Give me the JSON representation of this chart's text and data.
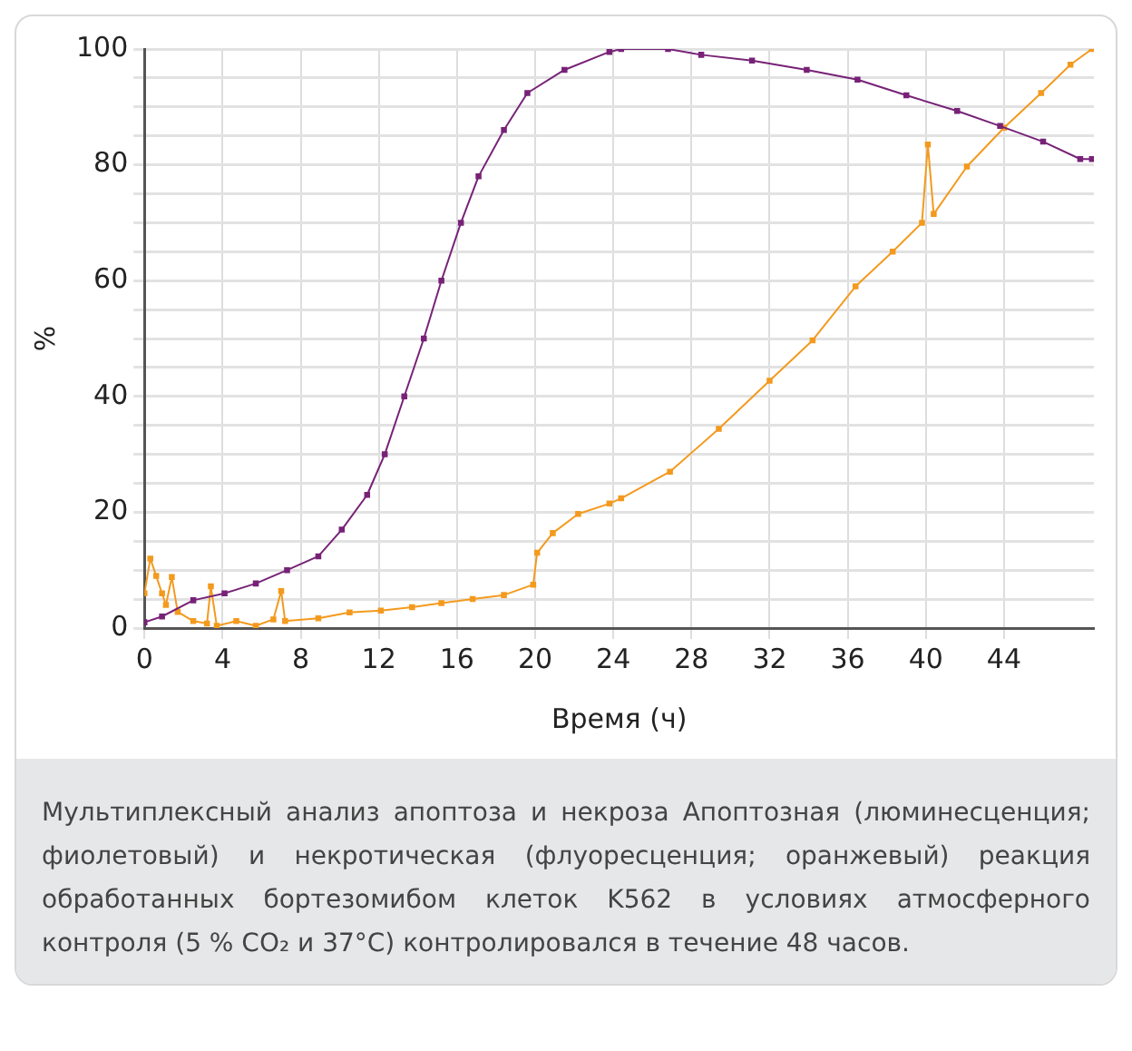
{
  "chart_data": {
    "type": "line",
    "xlabel": "Время (ч)",
    "ylabel": "%",
    "series": [
      {
        "color": "#772277",
        "x": [
          0,
          0.9,
          2.5,
          4.1,
          5.7,
          7.3,
          8.9,
          10.1,
          11.4,
          12.3,
          13.3,
          14.3,
          15.2,
          16.2,
          17.1,
          18.4,
          19.6,
          21.5,
          23.8,
          24.4,
          26.8,
          28.5,
          31.1,
          33.9,
          36.5,
          39,
          41.6,
          43.8,
          46,
          47.9,
          48.5
        ],
        "values": [
          1,
          2,
          4.8,
          6,
          7.7,
          10,
          12.4,
          17,
          23,
          30,
          40,
          50,
          60,
          70,
          78,
          86,
          92.4,
          96.4,
          99.5,
          100,
          100,
          99,
          98,
          96.4,
          94.7,
          92,
          89.3,
          86.7,
          84,
          81,
          81
        ]
      },
      {
        "color": "#f39a1e",
        "x": [
          0,
          0.3,
          0.6,
          0.9,
          1.1,
          1.4,
          1.7,
          2.5,
          3.2,
          3.4,
          3.7,
          4.7,
          5.7,
          6.6,
          7,
          7.2,
          8.9,
          10.5,
          12.1,
          13.7,
          15.2,
          16.8,
          18.4,
          19.9,
          20.1,
          20.9,
          22.2,
          23.8,
          24.4,
          26.9,
          29.4,
          32,
          34.2,
          36.4,
          38.3,
          39.8,
          40.1,
          40.4,
          42.1,
          44,
          45.9,
          47.4,
          48.5
        ],
        "values": [
          6,
          12,
          9,
          6,
          4,
          8.8,
          2.8,
          1.2,
          0.8,
          7.2,
          0.4,
          1.2,
          0.4,
          1.5,
          6.4,
          1.2,
          1.7,
          2.7,
          3,
          3.6,
          4.3,
          5,
          5.7,
          7.5,
          13,
          16.4,
          19.7,
          21.5,
          22.4,
          27,
          34.4,
          42.7,
          49.7,
          59,
          65,
          70,
          83.5,
          71.5,
          79.7,
          86.4,
          92.4,
          97.3,
          100
        ]
      }
    ],
    "xlim": [
      0,
      48.6
    ],
    "xticks": [
      0,
      4,
      8,
      12,
      16,
      20,
      24,
      28,
      32,
      36,
      40,
      44
    ],
    "ylim": [
      0,
      100
    ],
    "yticks": [
      0,
      {
        "value": 5,
        "label": null
      },
      {
        "value": 10,
        "label": null
      },
      {
        "value": 15,
        "label": null
      },
      20,
      {
        "value": 25,
        "label": null
      },
      {
        "value": 30,
        "label": null
      },
      {
        "value": 35,
        "label": null
      },
      40,
      {
        "value": 45,
        "label": null
      },
      {
        "value": 50,
        "label": null
      },
      {
        "value": 55,
        "label": null
      },
      60,
      {
        "value": 65,
        "label": null
      },
      {
        "value": 70,
        "label": null
      },
      {
        "value": 75,
        "label": null
      },
      80,
      {
        "value": 85,
        "label": null
      },
      {
        "value": 90,
        "label": null
      },
      {
        "value": 95,
        "label": null
      },
      100
    ],
    "grid": true,
    "marker": "square",
    "line_style": "solid",
    "legend": false,
    "annotations": [
      "Мультиплексный анализ апоптоза и некроза Апоптозная (люминесценция; фиолетовый) и некротическая (флуоресценция; оранжевый) реакция обработанных бортезомибом клеток K562 в условиях атмосферного контроля (5 % CO₂ и 37°C) контролировался в течение 48 часов."
    ]
  }
}
